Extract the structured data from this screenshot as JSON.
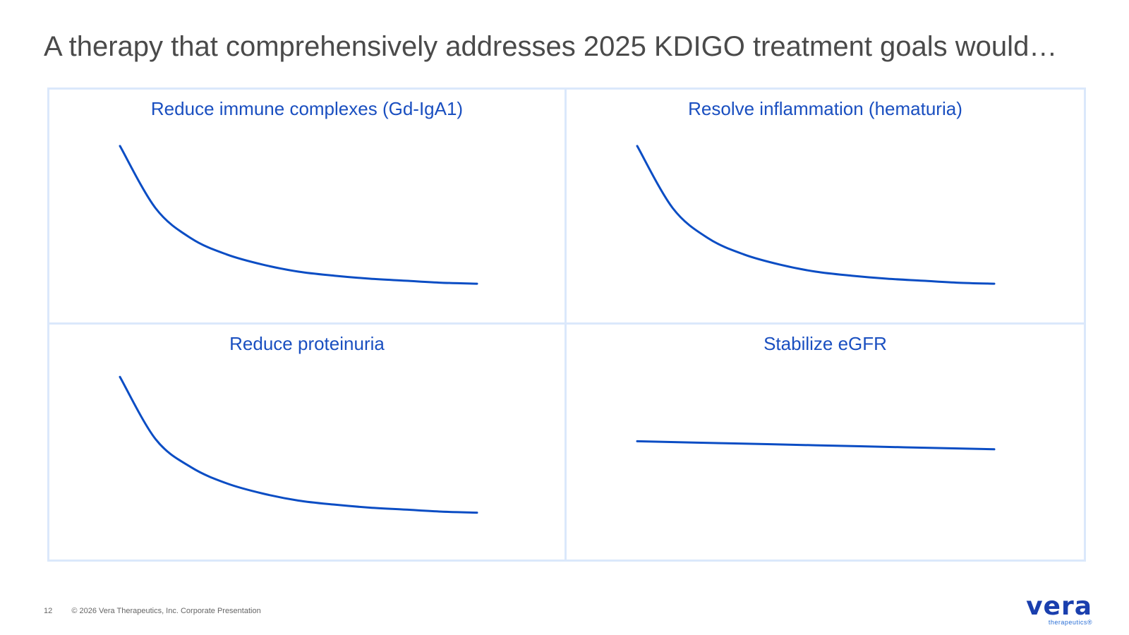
{
  "title": "A therapy that comprehensively addresses 2025 KDIGO treatment goals would…",
  "footer": {
    "page_number": "12",
    "copyright": "© 2026 Vera Therapeutics, Inc. Corporate Presentation"
  },
  "logo": {
    "word": "vera",
    "sub": "therapeutics®"
  },
  "colors": {
    "line": "#0b4dc4",
    "title": "#1a4fc0",
    "border": "#dbe8fb"
  },
  "chart_data": [
    {
      "type": "line",
      "title": "Reduce immune complexes (Gd-IgA1)",
      "xlabel": "",
      "ylabel": "",
      "xlim": [
        0,
        10
      ],
      "ylim": [
        0,
        10
      ],
      "grid": false,
      "series": [
        {
          "x": [
            0,
            1,
            2,
            3,
            4,
            5,
            6,
            7,
            8,
            9,
            10
          ],
          "y": [
            8.6,
            5.5,
            4.0,
            3.2,
            2.7,
            2.35,
            2.15,
            2.0,
            1.9,
            1.8,
            1.75
          ]
        }
      ]
    },
    {
      "type": "line",
      "title": "Resolve inflammation (hematuria)",
      "xlabel": "",
      "ylabel": "",
      "xlim": [
        0,
        10
      ],
      "ylim": [
        0,
        10
      ],
      "grid": false,
      "series": [
        {
          "x": [
            0,
            1,
            2,
            3,
            4,
            5,
            6,
            7,
            8,
            9,
            10
          ],
          "y": [
            8.6,
            5.5,
            4.0,
            3.2,
            2.7,
            2.35,
            2.15,
            2.0,
            1.9,
            1.8,
            1.75
          ]
        }
      ]
    },
    {
      "type": "line",
      "title": "Reduce proteinuria",
      "xlabel": "",
      "ylabel": "",
      "xlim": [
        0,
        10
      ],
      "ylim": [
        0,
        10
      ],
      "grid": false,
      "series": [
        {
          "x": [
            0,
            1,
            2,
            3,
            4,
            5,
            6,
            7,
            8,
            9,
            10
          ],
          "y": [
            8.8,
            5.7,
            4.3,
            3.5,
            3.0,
            2.65,
            2.45,
            2.3,
            2.2,
            2.1,
            2.05
          ]
        }
      ]
    },
    {
      "type": "line",
      "title": "Stabilize eGFR",
      "xlabel": "",
      "ylabel": "",
      "xlim": [
        0,
        10
      ],
      "ylim": [
        0,
        10
      ],
      "grid": false,
      "series": [
        {
          "x": [
            0,
            2.5,
            5,
            7.5,
            10
          ],
          "y": [
            5.6,
            5.5,
            5.4,
            5.3,
            5.2
          ]
        }
      ]
    }
  ]
}
